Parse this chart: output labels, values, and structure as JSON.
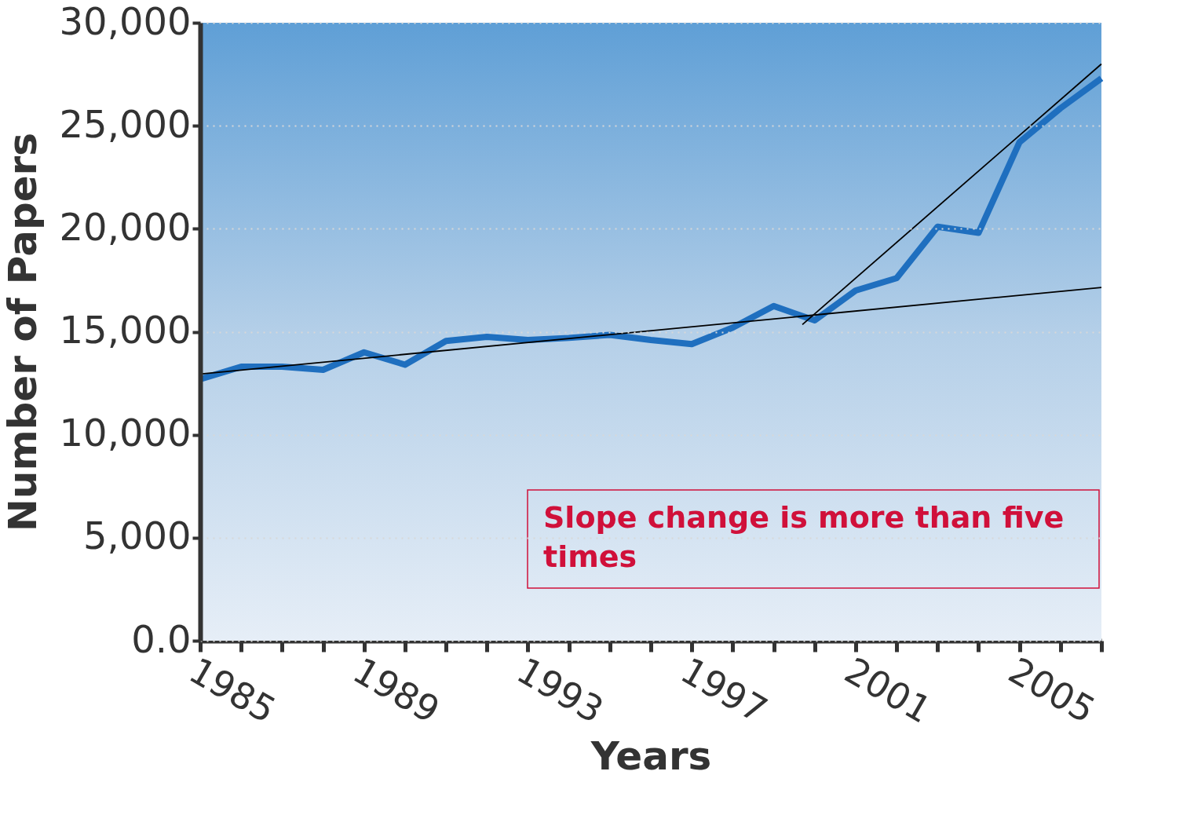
{
  "chart_data": {
    "type": "line",
    "xlabel": "Years",
    "ylabel": "Number of Papers",
    "x": [
      1985,
      1986,
      1987,
      1988,
      1989,
      1990,
      1991,
      1992,
      1993,
      1994,
      1995,
      1996,
      1997,
      1998,
      1999,
      2000,
      2001,
      2002,
      2003,
      2004,
      2005,
      2006,
      2007
    ],
    "series": [
      {
        "color": "#1f6fbf",
        "values": [
          12700,
          13300,
          13300,
          13150,
          14000,
          13400,
          14550,
          14750,
          14600,
          14700,
          14850,
          14600,
          14400,
          15200,
          16250,
          15550,
          17000,
          17600,
          20100,
          19800,
          24200,
          25850,
          27300
        ]
      },
      {
        "type": "line",
        "color": "#000000",
        "x": [
          1985,
          2007
        ],
        "values": [
          12950,
          17150
        ]
      },
      {
        "type": "line",
        "color": "#000000",
        "x": [
          1999.7,
          2007
        ],
        "values": [
          15350,
          28000
        ]
      }
    ],
    "xlim": [
      1985,
      2007
    ],
    "xticks": [
      1985,
      {
        "value": 1986,
        "label": null
      },
      {
        "value": 1987,
        "label": null
      },
      {
        "value": 1988,
        "label": null
      },
      1989,
      {
        "value": 1990,
        "label": null
      },
      {
        "value": 1991,
        "label": null
      },
      {
        "value": 1992,
        "label": null
      },
      1993,
      {
        "value": 1994,
        "label": null
      },
      {
        "value": 1995,
        "label": null
      },
      {
        "value": 1996,
        "label": null
      },
      1997,
      {
        "value": 1998,
        "label": null
      },
      {
        "value": 1999,
        "label": null
      },
      {
        "value": 2000,
        "label": null
      },
      2001,
      {
        "value": 2002,
        "label": null
      },
      {
        "value": 2003,
        "label": null
      },
      {
        "value": 2004,
        "label": null
      },
      2005,
      {
        "value": 2006,
        "label": null
      },
      {
        "value": 2007,
        "label": null
      }
    ],
    "ylim": [
      0,
      30000
    ],
    "yticks": [
      {
        "value": 0,
        "label": "0.0"
      },
      {
        "value": 5000,
        "label": "5,000"
      },
      {
        "value": 10000,
        "label": "10,000"
      },
      {
        "value": 15000,
        "label": "15,000"
      },
      {
        "value": 20000,
        "label": "20,000"
      },
      {
        "value": 25000,
        "label": "25,000"
      },
      {
        "value": 30000,
        "label": "30,000"
      }
    ],
    "grid": "y",
    "annotations": [
      "Slope change is more than five times"
    ]
  }
}
